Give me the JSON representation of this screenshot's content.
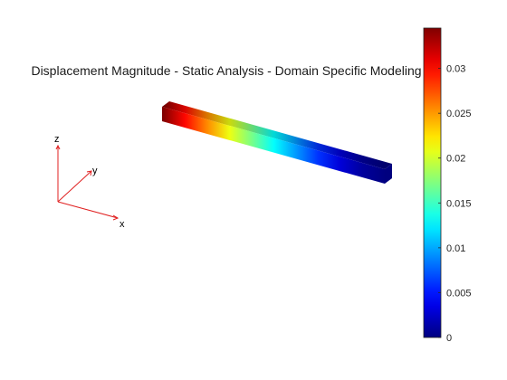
{
  "chart_data": {
    "type": "heatmap",
    "title": "Displacement Magnitude - Static Analysis - Domain Specific Modeling",
    "colorbar": {
      "min": 0,
      "max": 0.0345,
      "ticks": [
        0,
        0.005,
        0.01,
        0.015,
        0.02,
        0.025,
        0.03
      ],
      "tick_labels": [
        "0",
        "0.005",
        "0.01",
        "0.015",
        "0.02",
        "0.025",
        "0.03"
      ],
      "colormap": "jet",
      "placement": "right"
    },
    "beam": {
      "description_values": "displacement along beam length, fixed end at right",
      "values_along_length": [
        0.0345,
        0.03,
        0.0255,
        0.021,
        0.017,
        0.013,
        0.0095,
        0.006,
        0.003,
        0.001,
        0.0
      ]
    },
    "triad": {
      "x_label": "x",
      "y_label": "y",
      "z_label": "z",
      "color": "#e02020"
    }
  }
}
